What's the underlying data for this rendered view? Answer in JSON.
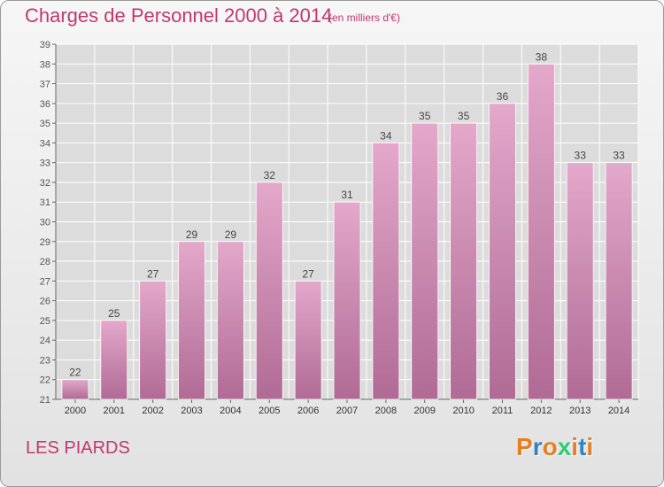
{
  "header": {
    "title": "Charges de Personnel 2000 à 2014",
    "subtitle": "(en milliers d'€)"
  },
  "footer": {
    "place": "LES PIARDS",
    "logo_letters": [
      "P",
      "r",
      "o",
      "x",
      "i",
      "t",
      "i"
    ],
    "logo_colors": [
      "#e67e22",
      "#2e86c1",
      "#e67e22",
      "#2ecc71",
      "#e67e22",
      "#2e86c1",
      "#e67e22"
    ]
  },
  "colors": {
    "bar_top": "#e3a8ca",
    "bar_bottom": "#b06b95",
    "grid": "#ffffff",
    "text": "#555555",
    "accent": "#c0396d"
  },
  "chart_data": {
    "type": "bar",
    "categories": [
      "2000",
      "2001",
      "2002",
      "2003",
      "2004",
      "2005",
      "2006",
      "2007",
      "2008",
      "2009",
      "2010",
      "2011",
      "2012",
      "2013",
      "2014"
    ],
    "values": [
      22,
      25,
      27,
      29,
      29,
      32,
      27,
      31,
      34,
      35,
      35,
      36,
      38,
      33,
      33
    ],
    "ylim": [
      21,
      39
    ],
    "yticks": [
      21,
      22,
      23,
      24,
      25,
      26,
      27,
      28,
      29,
      30,
      31,
      32,
      33,
      34,
      35,
      36,
      37,
      38,
      39
    ],
    "grid": true,
    "data_labels": true
  }
}
